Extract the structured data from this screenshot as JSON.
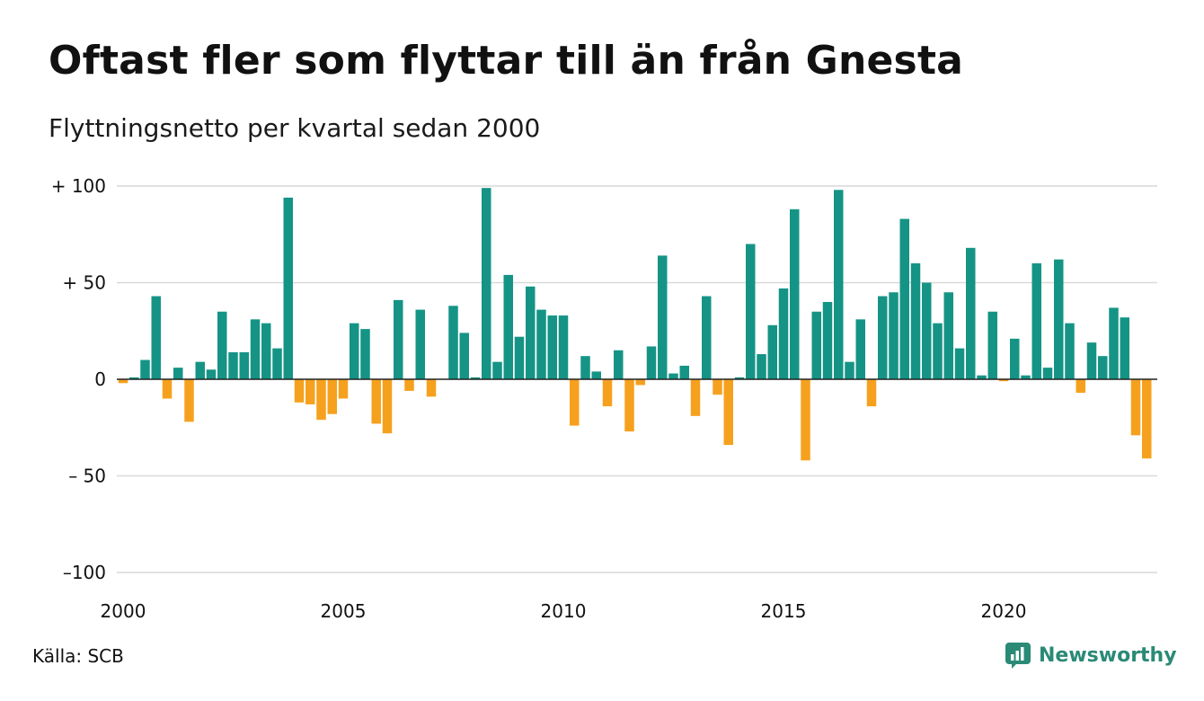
{
  "title": "Oftast fler som flyttar till än från Gnesta",
  "subtitle": "Flyttningsnetto per kvartal sedan 2000",
  "source": "Källa: SCB",
  "brand": {
    "name": "Newsworthy",
    "color": "#2a8a76"
  },
  "colors": {
    "positive": "#159486",
    "negative": "#f6a11e",
    "grid": "#d9d9d9",
    "zero": "#222222"
  },
  "chart_data": {
    "type": "bar",
    "x_start": 2000,
    "periods_per_year": 4,
    "ylim": [
      -100,
      100
    ],
    "y_ticks": [
      {
        "value": 100,
        "label": "+ 100"
      },
      {
        "value": 50,
        "label": "+  50"
      },
      {
        "value": 0,
        "label": "0"
      },
      {
        "value": -50,
        "label": "– 50"
      },
      {
        "value": -100,
        "label": "–100"
      }
    ],
    "x_ticks": [
      {
        "value": 2000,
        "label": "2000"
      },
      {
        "value": 2005,
        "label": "2005"
      },
      {
        "value": 2010,
        "label": "2010"
      },
      {
        "value": 2015,
        "label": "2015"
      },
      {
        "value": 2020,
        "label": "2020"
      }
    ],
    "values": [
      -2,
      1,
      10,
      43,
      -10,
      6,
      -22,
      9,
      5,
      35,
      14,
      14,
      31,
      29,
      16,
      94,
      -12,
      -13,
      -21,
      -18,
      -10,
      29,
      26,
      -23,
      -28,
      41,
      -6,
      36,
      -9,
      0,
      38,
      24,
      1,
      99,
      9,
      54,
      22,
      48,
      36,
      33,
      33,
      -24,
      12,
      4,
      -14,
      15,
      -27,
      -3,
      17,
      64,
      3,
      7,
      -19,
      43,
      -8,
      -34,
      1,
      70,
      13,
      28,
      47,
      88,
      -42,
      35,
      40,
      98,
      9,
      31,
      -14,
      43,
      45,
      83,
      60,
      50,
      29,
      45,
      16,
      68,
      2,
      35,
      -1,
      21,
      2,
      60,
      6,
      62,
      29,
      -7,
      19,
      12,
      37,
      32,
      -29,
      -41
    ]
  }
}
